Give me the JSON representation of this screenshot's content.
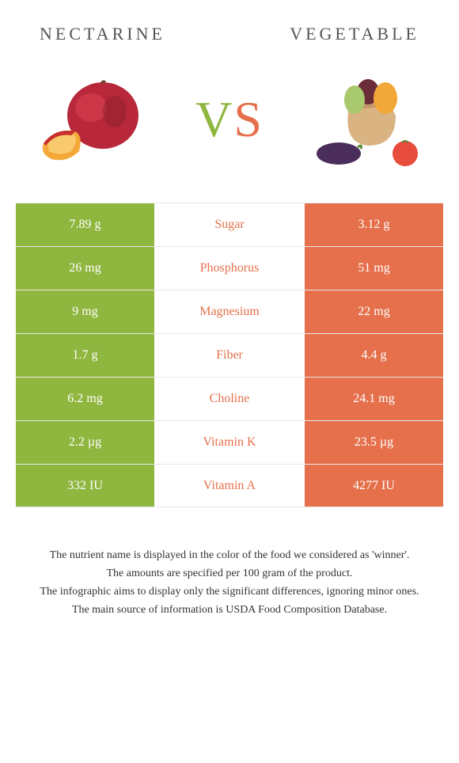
{
  "header": {
    "left": "NECTARINE",
    "right": "VEGETABLE"
  },
  "vs": {
    "v": "V",
    "s": "S"
  },
  "colors": {
    "left": "#8fb63f",
    "right": "#e5704b",
    "border": "#e8e8e8",
    "text": "#555"
  },
  "rows": [
    {
      "left": "7.89 g",
      "label": "Sugar",
      "right": "3.12 g",
      "winner": "right"
    },
    {
      "left": "26 mg",
      "label": "Phosphorus",
      "right": "51 mg",
      "winner": "right"
    },
    {
      "left": "9 mg",
      "label": "Magnesium",
      "right": "22 mg",
      "winner": "right"
    },
    {
      "left": "1.7 g",
      "label": "Fiber",
      "right": "4.4 g",
      "winner": "right"
    },
    {
      "left": "6.2 mg",
      "label": "Choline",
      "right": "24.1 mg",
      "winner": "right"
    },
    {
      "left": "2.2 µg",
      "label": "Vitamin K",
      "right": "23.5 µg",
      "winner": "right"
    },
    {
      "left": "332 IU",
      "label": "Vitamin A",
      "right": "4277 IU",
      "winner": "right"
    }
  ],
  "footer": {
    "l1": "The nutrient name is displayed in the color of the food we considered as 'winner'.",
    "l2": "The amounts are specified per 100 gram of the product.",
    "l3": "The infographic aims to display only the significant differences, ignoring minor ones.",
    "l4": "The main source of information is USDA Food Composition Database."
  }
}
